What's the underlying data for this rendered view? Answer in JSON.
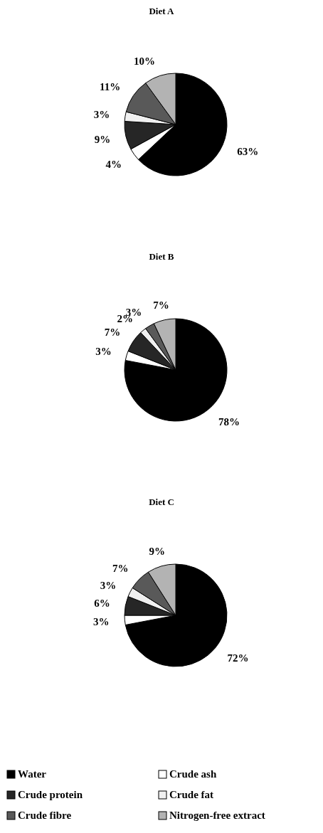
{
  "chart_data": [
    {
      "type": "pie",
      "title": "Diet A",
      "categories": [
        null,
        null,
        null,
        null,
        null,
        null
      ],
      "values": [
        63,
        4,
        9,
        3,
        11,
        10
      ],
      "value_labels": [
        "63%",
        "4%",
        "9%",
        "3%",
        "11%",
        "10%"
      ],
      "colors": [
        "#000000",
        "#ffffff",
        "#262626",
        "#f0f0f0",
        "#595959",
        "#b3b3b3"
      ]
    },
    {
      "type": "pie",
      "title": "Diet B",
      "categories": [
        null,
        null,
        null,
        null,
        null,
        null
      ],
      "values": [
        78,
        3,
        7,
        2,
        3,
        7
      ],
      "value_labels": [
        "78%",
        "3%",
        "7%",
        "2%",
        "3%",
        "7%"
      ],
      "colors": [
        "#000000",
        "#ffffff",
        "#262626",
        "#f0f0f0",
        "#595959",
        "#b3b3b3"
      ]
    },
    {
      "type": "pie",
      "title": "Diet C",
      "categories": [
        "Water",
        "Crude ash",
        "Crude protein",
        "Crude fat",
        "Crude fibre",
        "Nitrogen-free extract"
      ],
      "values": [
        72,
        3,
        6,
        3,
        7,
        9
      ],
      "value_labels": [
        "72%",
        "3%",
        "6%",
        "3%",
        "7%",
        "9%"
      ],
      "colors": [
        "#000000",
        "#ffffff",
        "#262626",
        "#f0f0f0",
        "#595959",
        "#b3b3b3"
      ],
      "legend": "bottom"
    }
  ]
}
